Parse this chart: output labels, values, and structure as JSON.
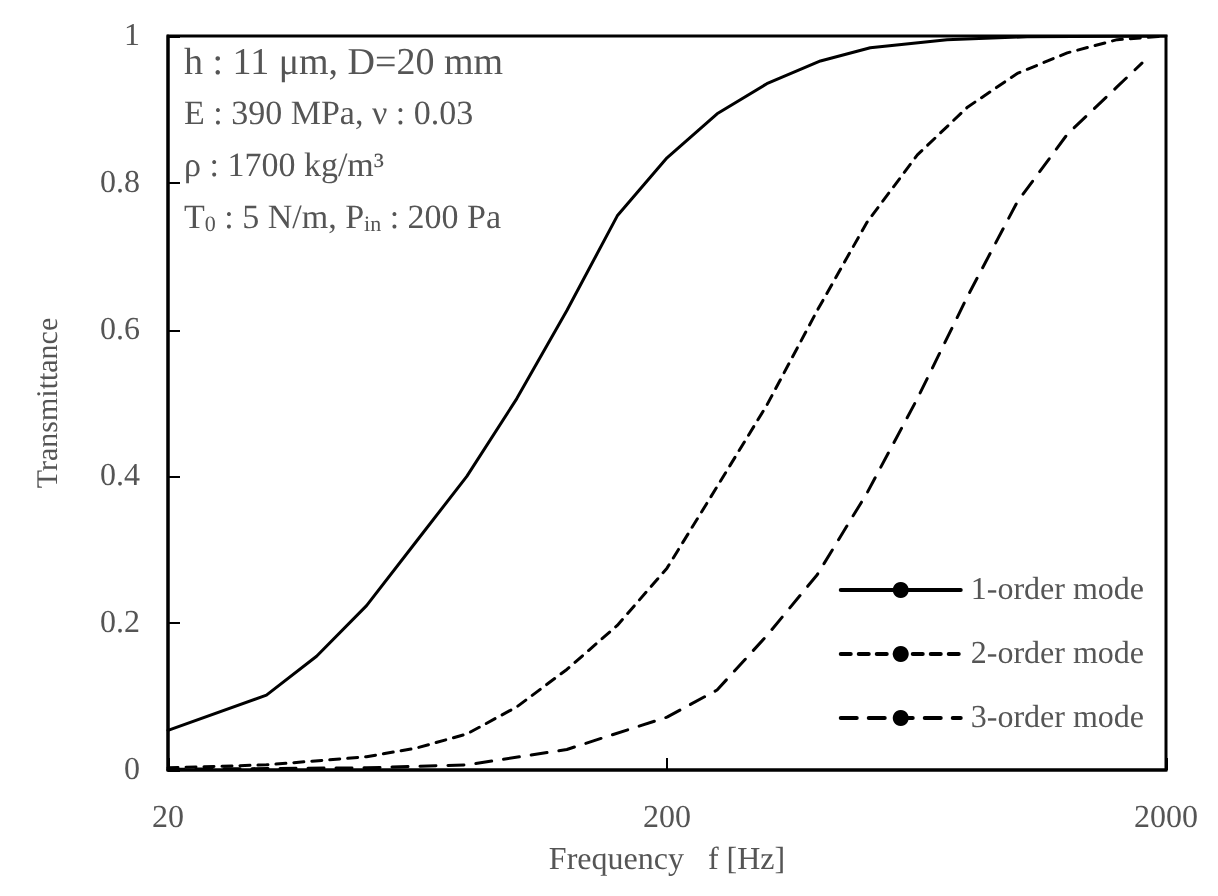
{
  "chart_data": {
    "type": "line",
    "xlabel": "Frequency   f [Hz]",
    "ylabel": "Transmittance",
    "log": "x",
    "xlim": [
      20,
      2000
    ],
    "xticks": [
      20,
      200,
      2000
    ],
    "ylim": [
      0,
      1
    ],
    "yticks": [
      0,
      0.2,
      0.4,
      0.6,
      0.8,
      1
    ],
    "grid": false,
    "legend": "bottom right",
    "marker": "none",
    "annotations": [
      "h : 11 μm, D=20 mm",
      "E : 390 MPa, ν : 0.03",
      "ρ : 1700 kg/m³",
      "T$_{0}$ : 5 N/m, P$_{in}$ : 200 Pa"
    ],
    "series": [
      {
        "name": "1-order mode",
        "color": "#000000",
        "line_style": "solid",
        "x": [
          20,
          31.5,
          39.7,
          50,
          63,
          79.4,
          100,
          126,
          159,
          200,
          252,
          317,
          406,
          511,
          728,
          1054,
          2000
        ],
        "values": [
          0.054,
          0.102,
          0.155,
          0.224,
          0.312,
          0.4,
          0.506,
          0.626,
          0.755,
          0.834,
          0.894,
          0.935,
          0.966,
          0.984,
          0.995,
          0.999,
          1
        ]
      },
      {
        "name": "2-order mode",
        "color": "#000000",
        "line_style": "dashed",
        "x": [
          20,
          31.5,
          50,
          63,
          79.4,
          100,
          126,
          159,
          200,
          252,
          317,
          400,
          503,
          635,
          800,
          1007,
          1268,
          1597,
          2000
        ],
        "values": [
          0.003,
          0.007,
          0.018,
          0.03,
          0.049,
          0.086,
          0.137,
          0.197,
          0.275,
          0.386,
          0.497,
          0.626,
          0.746,
          0.838,
          0.903,
          0.949,
          0.977,
          0.995,
          1
        ]
      },
      {
        "name": "3-order mode",
        "color": "#000000",
        "line_style": "dashed",
        "x": [
          20,
          50,
          79.4,
          126,
          200,
          252,
          317,
          400,
          503,
          635,
          800,
          1007,
          1268,
          1597,
          1790
        ],
        "values": [
          0.001,
          0.003,
          0.007,
          0.028,
          0.072,
          0.109,
          0.183,
          0.266,
          0.377,
          0.506,
          0.645,
          0.774,
          0.866,
          0.931,
          0.963
        ]
      }
    ]
  }
}
